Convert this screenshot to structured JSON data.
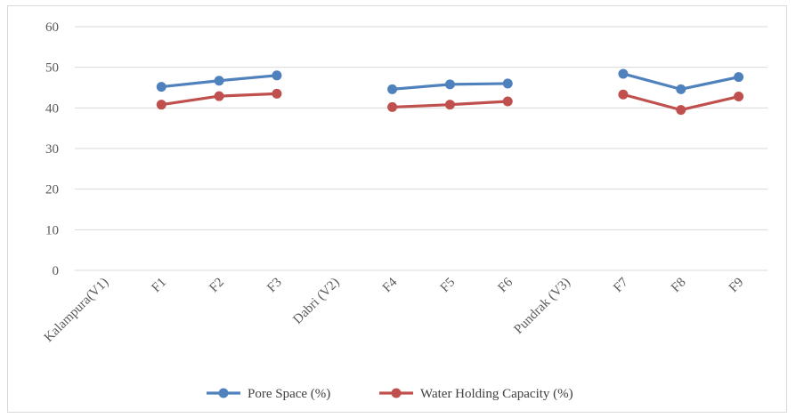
{
  "chart_data": {
    "type": "line",
    "categories": [
      "Kalampura(V1)",
      "F1",
      "F2",
      "F3",
      "Dabri (V2)",
      "F4",
      "F5",
      "F6",
      "Pundrak (V3)",
      "F7",
      "F8",
      "F9"
    ],
    "series": [
      {
        "name": "Pore Space (%)",
        "color": "#4f81bd",
        "values": [
          null,
          45.2,
          46.7,
          48.0,
          null,
          44.6,
          45.8,
          46.0,
          null,
          48.4,
          44.6,
          47.6
        ]
      },
      {
        "name": "Water Holding Capacity (%)",
        "color": "#c0504d",
        "values": [
          null,
          40.8,
          42.9,
          43.5,
          null,
          40.2,
          40.8,
          41.6,
          null,
          43.3,
          39.5,
          42.8
        ]
      }
    ],
    "ylim": [
      0,
      60
    ],
    "yticks": [
      0,
      10,
      20,
      30,
      40,
      50,
      60
    ],
    "grid": true,
    "legend": "bottom"
  }
}
